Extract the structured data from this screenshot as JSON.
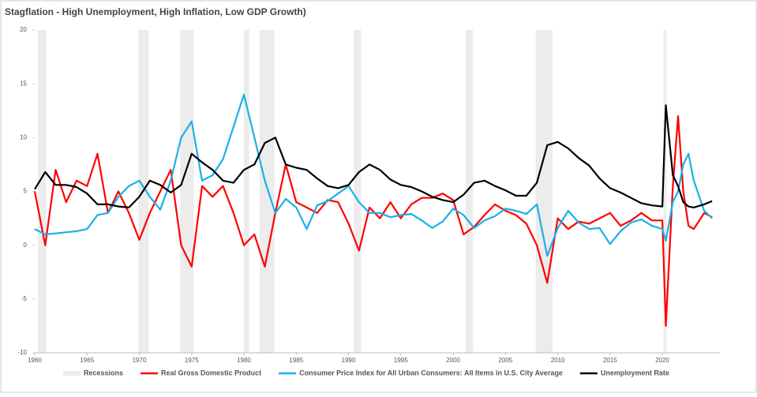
{
  "chart_data": {
    "type": "line",
    "title": "Stagflation - High Unemployment, High Inflation, Low GDP Growth)",
    "x": [
      1960,
      1961,
      1962,
      1963,
      1964,
      1965,
      1966,
      1967,
      1968,
      1969,
      1970,
      1971,
      1972,
      1973,
      1974,
      1975,
      1976,
      1977,
      1978,
      1979,
      1980,
      1981,
      1982,
      1983,
      1984,
      1985,
      1986,
      1987,
      1988,
      1989,
      1990,
      1991,
      1992,
      1993,
      1994,
      1995,
      1996,
      1997,
      1998,
      1999,
      2000,
      2001,
      2002,
      2003,
      2004,
      2005,
      2006,
      2007,
      2008,
      2009,
      2010,
      2011,
      2012,
      2013,
      2014,
      2015,
      2016,
      2017,
      2018,
      2019,
      2020,
      2020.33,
      2021,
      2021.5,
      2022,
      2022.5,
      2023,
      2024,
      2024.75
    ],
    "series": [
      {
        "name": "Real Gross Domestic Product",
        "color": "#ff0000",
        "values": [
          5,
          0,
          7,
          4,
          6,
          5.5,
          8.5,
          3,
          5,
          3,
          0.5,
          3,
          5,
          7,
          0,
          -2,
          5.5,
          4.5,
          5.5,
          3,
          0,
          1,
          -2,
          3,
          7.5,
          4,
          3.5,
          3,
          4.2,
          4,
          2,
          -0.5,
          3.5,
          2.5,
          4,
          2.5,
          3.8,
          4.4,
          4.4,
          4.8,
          4.2,
          1,
          1.7,
          2.8,
          3.8,
          3.2,
          2.8,
          2,
          0,
          -3.5,
          2.5,
          1.5,
          2.2,
          2,
          2.5,
          3,
          1.8,
          2.3,
          3,
          2.3,
          2.3,
          -7.5,
          5.5,
          12,
          5,
          1.8,
          1.5,
          3,
          2.6
        ]
      },
      {
        "name": "Consumer Price Index for All Urban Consumers: All Items in U.S. City Average",
        "color": "#1ab0e8",
        "values": [
          1.5,
          1,
          1.1,
          1.2,
          1.3,
          1.5,
          2.8,
          3,
          4.5,
          5.5,
          6,
          4.5,
          3.3,
          6,
          10,
          11.5,
          6,
          6.5,
          8,
          11,
          14,
          10,
          6,
          3,
          4.3,
          3.5,
          1.5,
          3.7,
          4.1,
          4.8,
          5.5,
          4,
          3,
          3,
          2.6,
          2.8,
          2.9,
          2.3,
          1.6,
          2.2,
          3.4,
          2.8,
          1.6,
          2.3,
          2.7,
          3.4,
          3.2,
          2.9,
          3.8,
          -1,
          1.6,
          3.2,
          2.1,
          1.5,
          1.6,
          0.1,
          1.3,
          2.1,
          2.4,
          1.8,
          1.5,
          0.4,
          4,
          5,
          7.5,
          8.5,
          6,
          3.2,
          2.5
        ]
      },
      {
        "name": "Unemployment Rate",
        "color": "#000000",
        "values": [
          5.2,
          6.8,
          5.6,
          5.6,
          5.4,
          4.8,
          3.8,
          3.8,
          3.6,
          3.5,
          4.5,
          6,
          5.6,
          4.9,
          5.6,
          8.5,
          7.7,
          7,
          6,
          5.8,
          7,
          7.5,
          9.5,
          10,
          7.5,
          7.2,
          7,
          6.2,
          5.5,
          5.3,
          5.6,
          6.8,
          7.5,
          7,
          6.1,
          5.6,
          5.4,
          5,
          4.5,
          4.2,
          4,
          4.7,
          5.8,
          6,
          5.5,
          5.1,
          4.6,
          4.6,
          5.8,
          9.3,
          9.6,
          9,
          8.1,
          7.4,
          6.2,
          5.3,
          4.9,
          4.4,
          3.9,
          3.7,
          3.6,
          13,
          6.5,
          5.5,
          4,
          3.6,
          3.5,
          3.8,
          4.1
        ]
      }
    ],
    "recessions": {
      "name": "Recessions",
      "color": "#ececec",
      "ranges": [
        [
          1960.3,
          1961.1
        ],
        [
          1969.9,
          1970.9
        ],
        [
          1973.9,
          1975.2
        ],
        [
          1980,
          1980.5
        ],
        [
          1981.5,
          1982.9
        ],
        [
          1990.5,
          1991.2
        ],
        [
          2001.2,
          2001.9
        ],
        [
          2007.9,
          2009.5
        ],
        [
          2020.1,
          2020.4
        ]
      ]
    },
    "xlim": [
      1960,
      2025.5
    ],
    "xticks": [
      1960,
      1965,
      1970,
      1975,
      1980,
      1985,
      1990,
      1995,
      2000,
      2005,
      2010,
      2015,
      2020
    ],
    "ylim": [
      -10,
      20
    ],
    "yticks": [
      -10,
      -5,
      0,
      5,
      10,
      15,
      20
    ]
  }
}
